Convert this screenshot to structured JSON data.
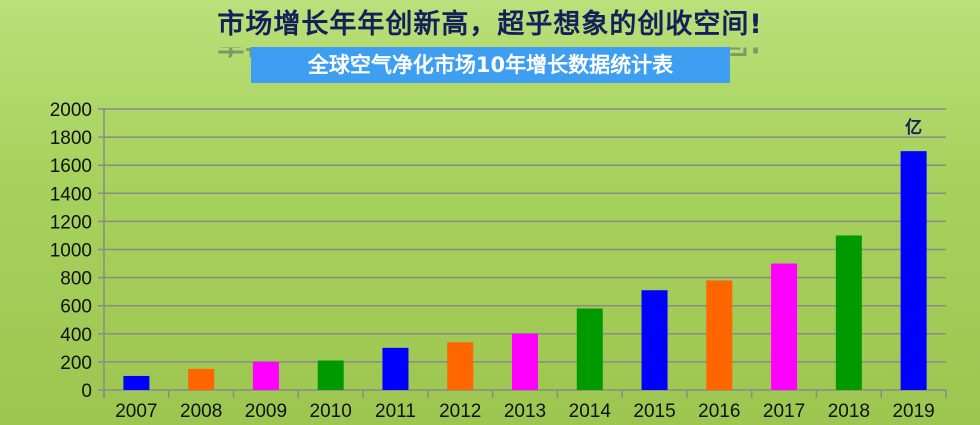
{
  "header": {
    "title": "市场增长年年创新高，超乎想象的创收空间!",
    "subtitle": "全球空气净化市场10年增长数据统计表"
  },
  "chart_data": {
    "type": "bar",
    "categories": [
      "2007",
      "2008",
      "2009",
      "2010",
      "2011",
      "2012",
      "2013",
      "2014",
      "2015",
      "2016",
      "2017",
      "2018",
      "2019"
    ],
    "values": [
      100,
      150,
      200,
      210,
      300,
      340,
      400,
      580,
      710,
      780,
      900,
      1100,
      1700
    ],
    "colors": [
      "#0000ff",
      "#ff6600",
      "#ff00ff",
      "#009900",
      "#0000ff",
      "#ff6600",
      "#ff00ff",
      "#009900",
      "#0000ff",
      "#ff6600",
      "#ff00ff",
      "#009900",
      "#0000ff"
    ],
    "unit_label": "亿",
    "ylim": [
      0,
      2000
    ],
    "yticks": [
      0,
      200,
      400,
      600,
      800,
      1000,
      1200,
      1400,
      1600,
      1800,
      2000
    ],
    "grid": true,
    "title": "全球空气净化市场10年增长数据统计表"
  }
}
